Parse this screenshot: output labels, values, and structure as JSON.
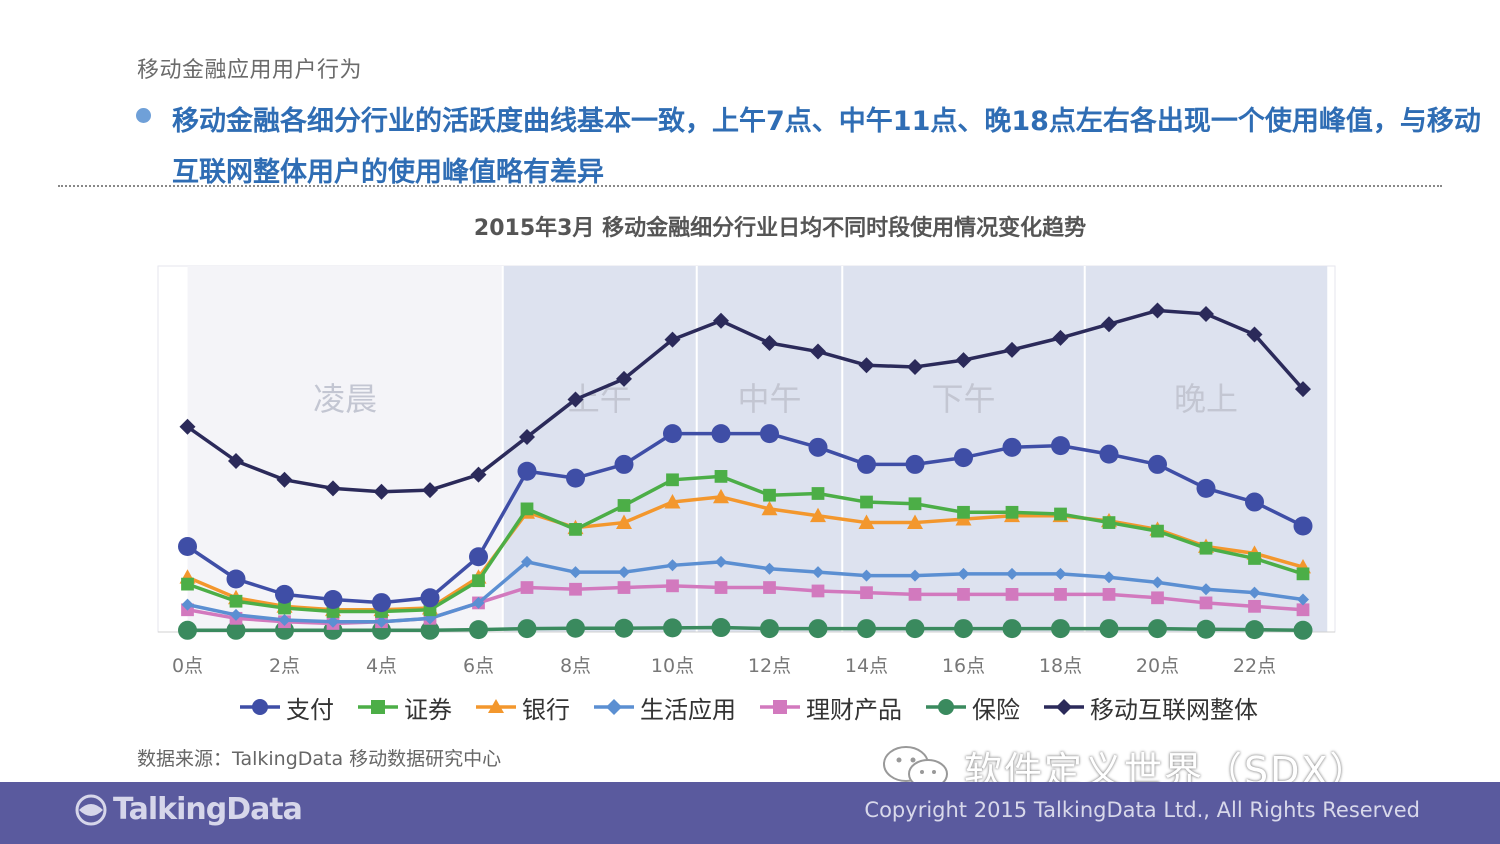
{
  "page": {
    "breadcrumb": "移动金融应用用户行为",
    "headline": "移动金融各细分行业的活跃度曲线基本一致，上午7点、中午11点、晚18点左右各出现一个使用峰值，与移动互联网整体用户的使用峰值略有差异",
    "source": "数据来源：TalkingData 移动数据研究中心",
    "watermark": "软件定义世界（SDX）",
    "logo_text": "TalkingData",
    "copyright": "Copyright 2015 TalkingData Ltd., All Rights Reserved",
    "icons": [
      "wechat-icon",
      "talkingdata-logo-icon"
    ]
  },
  "chart_data": {
    "type": "line",
    "title": "2015年3月 移动金融细分行业日均不同时段使用情况变化趋势",
    "x": [
      0,
      1,
      2,
      3,
      4,
      5,
      6,
      7,
      8,
      9,
      10,
      11,
      12,
      13,
      14,
      15,
      16,
      17,
      18,
      19,
      20,
      21,
      22,
      23
    ],
    "x_tick_labels": [
      "0点",
      "2点",
      "4点",
      "6点",
      "8点",
      "10点",
      "12点",
      "14点",
      "16点",
      "18点",
      "20点",
      "22点"
    ],
    "x_tick_values": [
      0,
      2,
      4,
      6,
      8,
      10,
      12,
      14,
      16,
      18,
      20,
      22
    ],
    "ylim": [
      0,
      100
    ],
    "grid": false,
    "legend_position": "bottom",
    "periods": [
      {
        "label": "凌晨",
        "start": 0,
        "end": 6.5,
        "color": "#f4f4f8"
      },
      {
        "label": "上午",
        "start": 6.5,
        "end": 10.5,
        "color": "#dde2ef"
      },
      {
        "label": "中午",
        "start": 10.5,
        "end": 13.5,
        "color": "#dde2ef"
      },
      {
        "label": "下午",
        "start": 13.5,
        "end": 18.5,
        "color": "#dde2ef"
      },
      {
        "label": "晚上",
        "start": 18.5,
        "end": 23.5,
        "color": "#dde2ef"
      }
    ],
    "series": [
      {
        "name": "支付",
        "color": "#3f4ea6",
        "marker": "circle",
        "values": [
          25,
          15.5,
          11,
          9.5,
          8.6,
          10,
          22,
          47,
          45,
          49,
          58,
          58,
          58,
          54,
          49,
          49,
          51,
          54,
          54.5,
          52,
          49,
          42,
          38,
          31
        ]
      },
      {
        "name": "证券",
        "color": "#4cae47",
        "marker": "square",
        "values": [
          14,
          9,
          7,
          6,
          6,
          6.5,
          15,
          36,
          30,
          37,
          44.5,
          45.5,
          40,
          40.5,
          38,
          37.5,
          35,
          35,
          34.5,
          32,
          29.5,
          24.5,
          21.5,
          17
        ]
      },
      {
        "name": "银行",
        "color": "#f3972d",
        "marker": "triangle",
        "values": [
          16,
          10,
          7.5,
          6.5,
          6.5,
          7,
          16,
          35,
          30.5,
          32,
          38,
          39.5,
          36,
          34,
          32,
          32,
          33,
          34,
          34,
          32.5,
          30,
          25,
          23,
          19
        ]
      },
      {
        "name": "生活应用",
        "color": "#5b8fd2",
        "marker": "diamond",
        "values": [
          8,
          5,
          3.5,
          3,
          3,
          4,
          8.5,
          20.5,
          17.5,
          17.5,
          19.5,
          20.5,
          18.5,
          17.5,
          16.5,
          16.5,
          17,
          17,
          17,
          16,
          14.5,
          12.5,
          11.5,
          9.5
        ]
      },
      {
        "name": "理财产品",
        "color": "#d279be",
        "marker": "square",
        "values": [
          6.5,
          4,
          3,
          2.5,
          3,
          4,
          8.5,
          13,
          12.5,
          13,
          13.5,
          13,
          13,
          12,
          11.5,
          11,
          11,
          11,
          11,
          11,
          10,
          8.5,
          7.5,
          6.5
        ]
      },
      {
        "name": "保险",
        "color": "#3a8a5e",
        "marker": "circle",
        "values": [
          0.5,
          0.5,
          0.5,
          0.5,
          0.5,
          0.5,
          0.7,
          1,
          1.1,
          1.1,
          1.2,
          1.3,
          1,
          1,
          1,
          1,
          1,
          1,
          1,
          1,
          1,
          0.8,
          0.7,
          0.5
        ]
      },
      {
        "name": "移动互联网整体",
        "color": "#2b2a5a",
        "marker": "diamond",
        "values": [
          60,
          50,
          44.5,
          42,
          41,
          41.5,
          46,
          57,
          68,
          74,
          85.5,
          91,
          84.5,
          82,
          78,
          77.5,
          79.5,
          82.5,
          86,
          90,
          94,
          93,
          87,
          71
        ]
      }
    ]
  }
}
